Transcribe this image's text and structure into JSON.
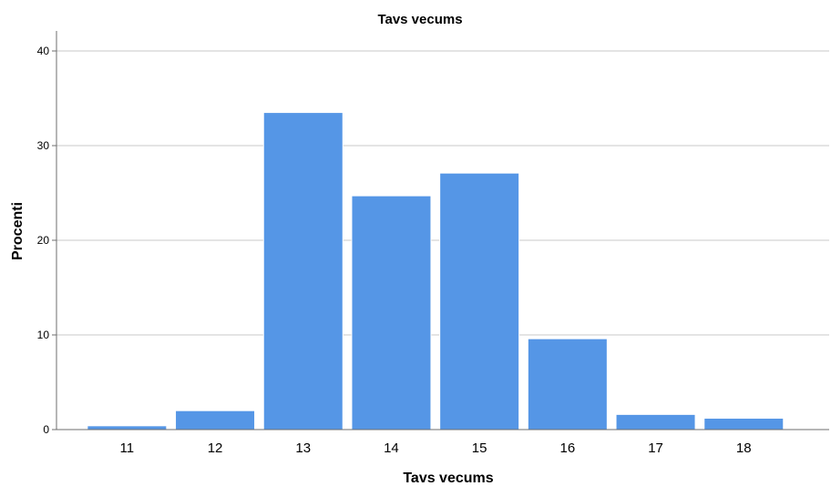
{
  "chart_data": {
    "type": "bar",
    "title": "Tavs vecums",
    "xlabel": "Tavs vecums",
    "ylabel": "Procenti",
    "categories": [
      "11",
      "12",
      "13",
      "14",
      "15",
      "16",
      "17",
      "18"
    ],
    "values": [
      0.4,
      2.0,
      33.5,
      24.7,
      27.1,
      9.6,
      1.6,
      1.2
    ],
    "ylim": [
      0,
      42
    ],
    "yticks": [
      "0",
      "10",
      "20",
      "30",
      "40"
    ],
    "grid": true,
    "bar_color": "#5596e6"
  }
}
